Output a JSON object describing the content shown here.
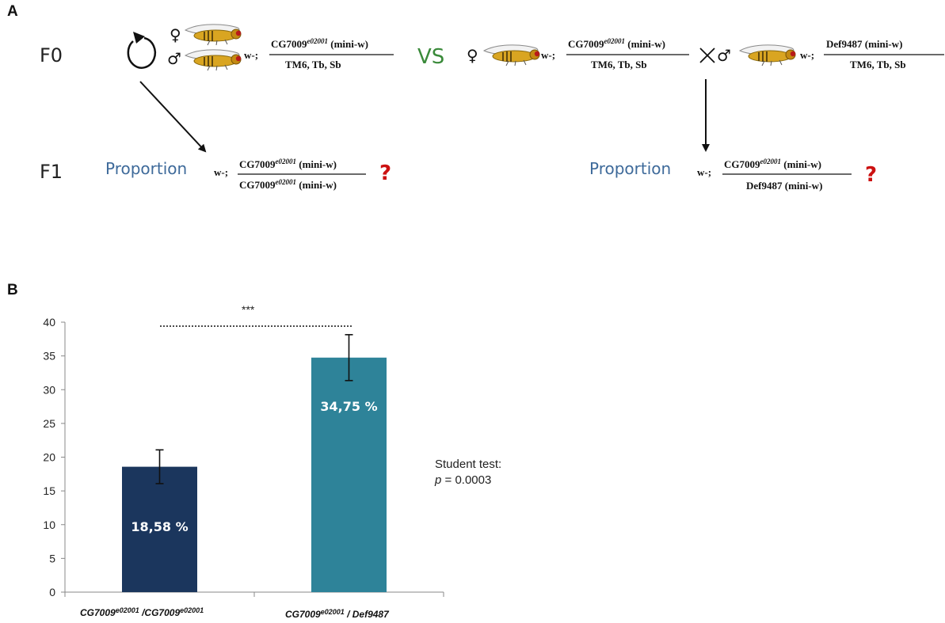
{
  "panel_a": {
    "letter": "A",
    "f0_label": "F0",
    "f1_label": "F1",
    "female_symbol": "♀",
    "male_symbol": "♂",
    "cross_symbol": "×",
    "vs_label": "VS",
    "self_cross_icon": "circular-arrow-icon",
    "fly_icon": "fruit-fly-icon",
    "w_prefix": "w-;",
    "left_cross": {
      "top": [
        "CG7009",
        "e02001",
        " (mini-w)"
      ],
      "bottom": "TM6, Tb, Sb"
    },
    "right_cross_female": {
      "top": [
        "CG7009",
        "e02001",
        " (mini-w)"
      ],
      "bottom": "TM6, Tb, Sb"
    },
    "right_cross_male": {
      "top": "Def9487 (mini-w)",
      "bottom": "TM6, Tb, Sb"
    },
    "left_result": {
      "label": "Proportion",
      "top": [
        "CG7009",
        "e02001",
        " (mini-w)"
      ],
      "bottom": [
        "CG7009",
        "e02001",
        " (mini-w)"
      ],
      "question": "?"
    },
    "right_result": {
      "label": "Proportion",
      "top": [
        "CG7009",
        "e02001",
        " (mini-w)"
      ],
      "bottom": "Def9487 (mini-w)",
      "question": "?"
    }
  },
  "panel_b": {
    "letter": "B",
    "significance": "***",
    "stat_line1": "Student test:",
    "stat_p_symbol": "p",
    "stat_p_value": " = 0.0003",
    "x_categories": [
      [
        "CG7009",
        "e02001",
        " /CG7009",
        "e02001"
      ],
      [
        "CG7009",
        "e02001",
        " / Def9487"
      ]
    ]
  },
  "chart_data": {
    "type": "bar",
    "categories": [
      "CG7009e02001 /CG7009e02001",
      "CG7009e02001 / Def9487"
    ],
    "values": [
      18.58,
      34.75
    ],
    "error": [
      2.5,
      3.4
    ],
    "bar_labels": [
      "18,58 %",
      "34,75 %"
    ],
    "colors": [
      "#1b365d",
      "#2e8399"
    ],
    "ylim": [
      0,
      40
    ],
    "yticks": [
      0,
      5,
      10,
      15,
      20,
      25,
      30,
      35,
      40
    ],
    "title": "",
    "xlabel": "",
    "ylabel": "",
    "grid": false
  }
}
